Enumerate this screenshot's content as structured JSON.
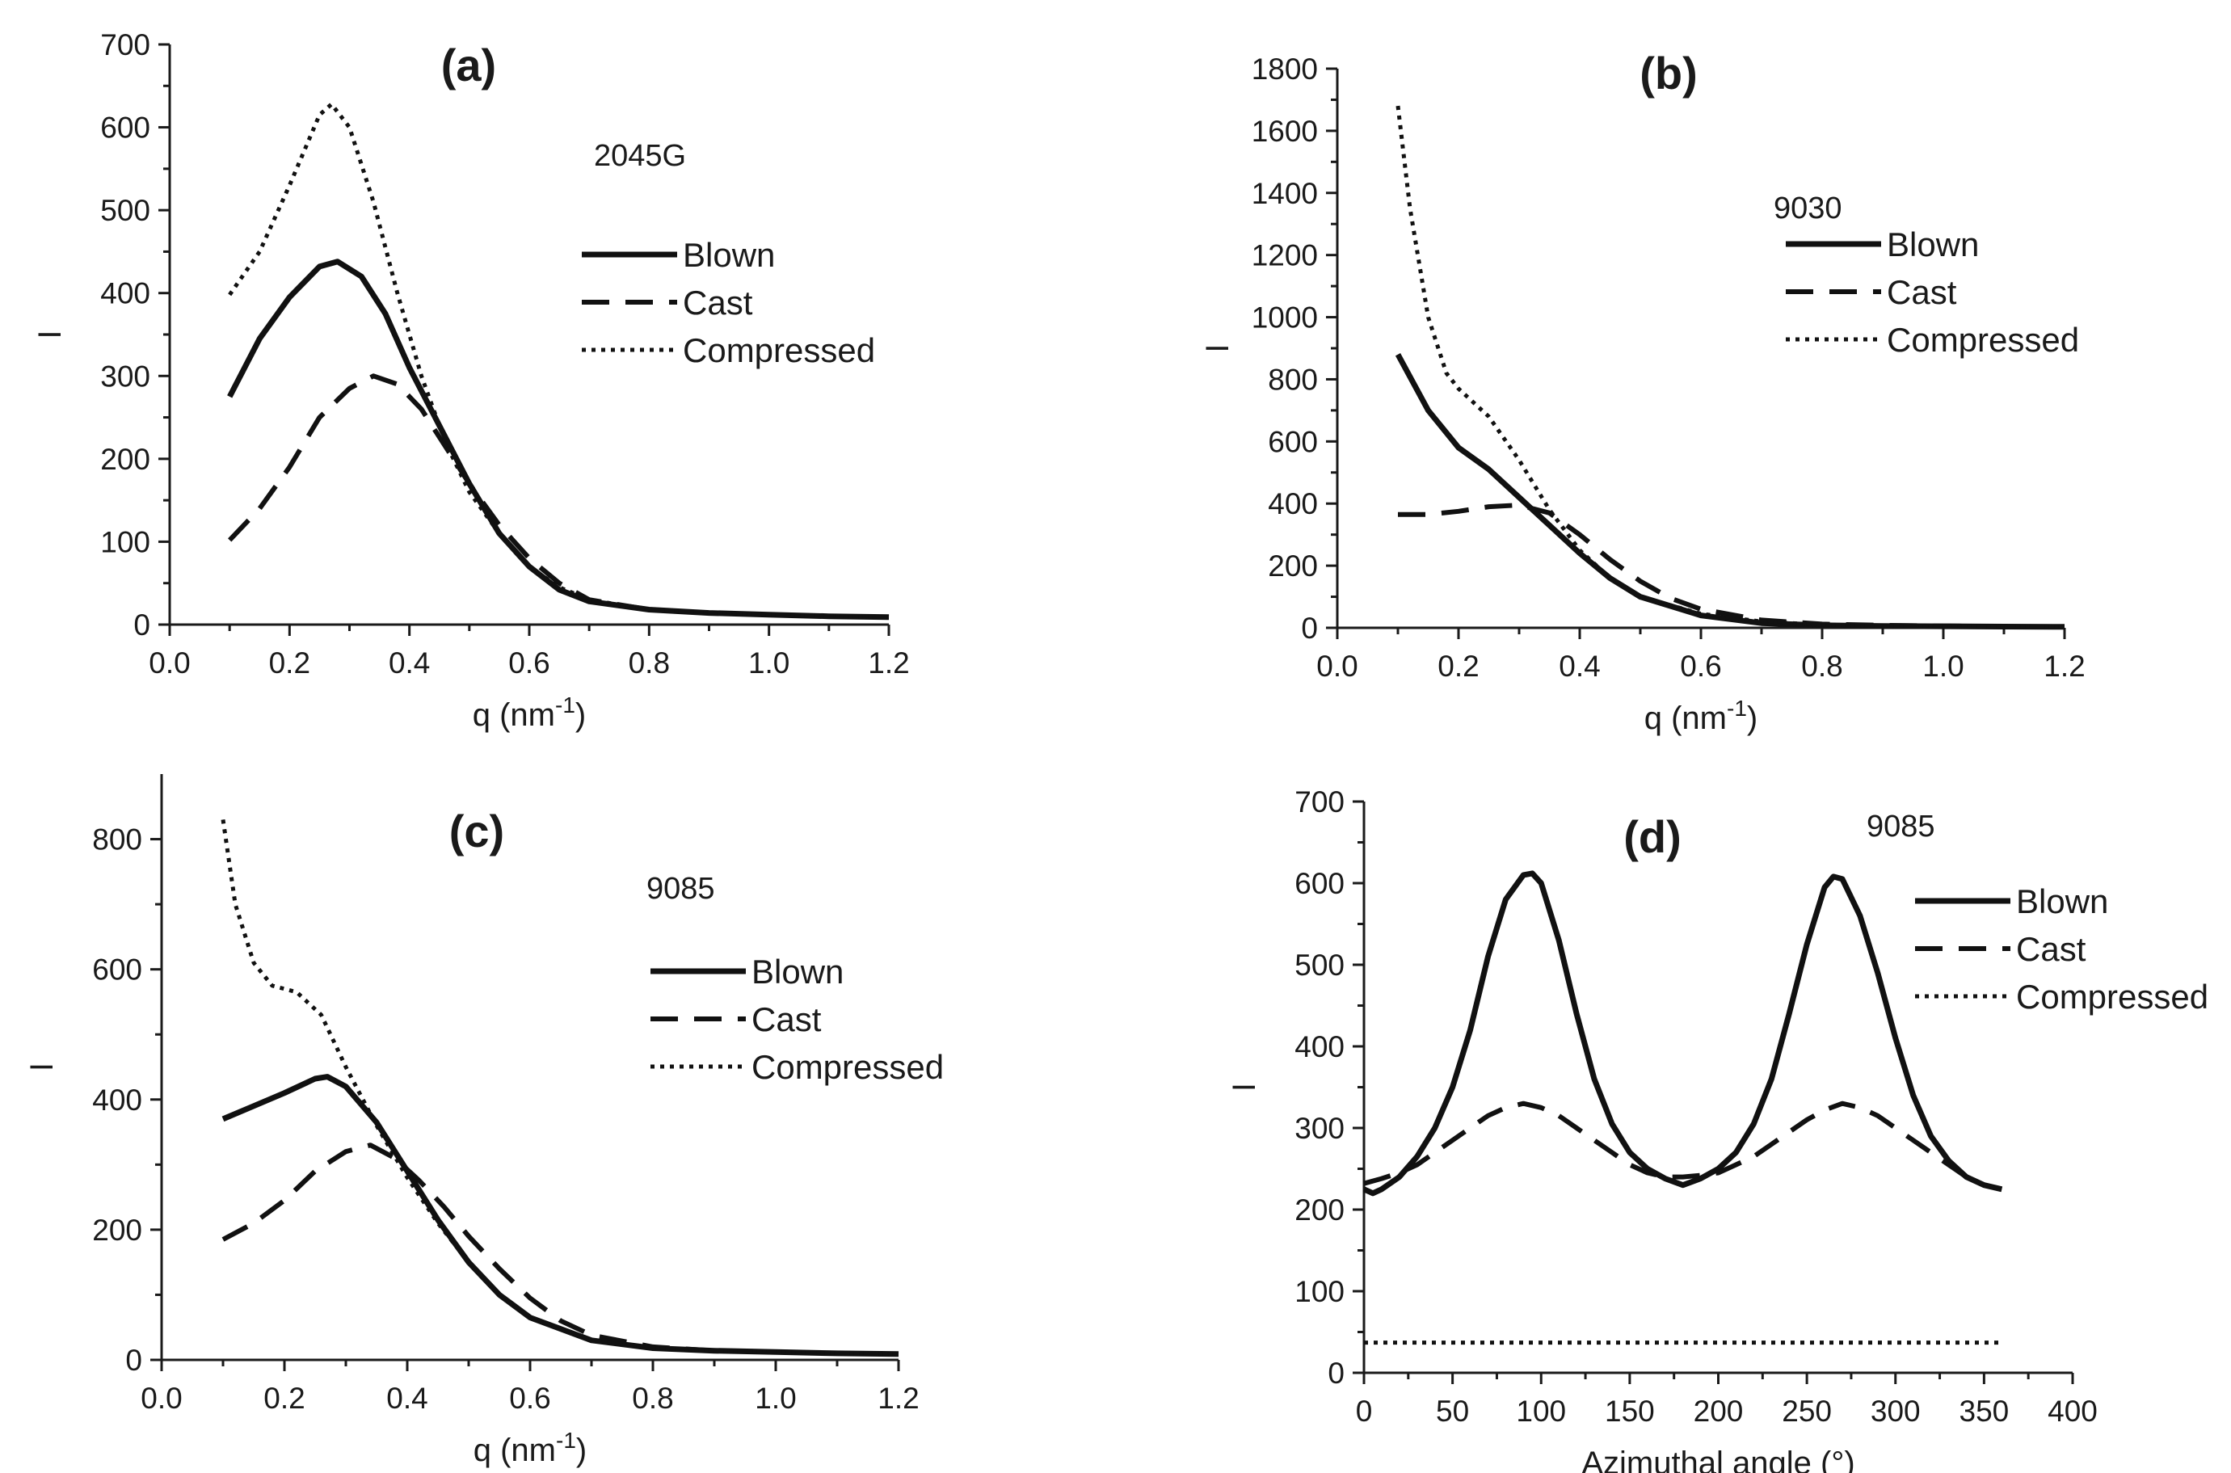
{
  "chart_data": [
    {
      "type": "line",
      "panel": "(a)",
      "annotation": "2045G",
      "xlabel": "q (nm",
      "xlabel_sup": "-1",
      "xlabel_suffix": ")",
      "ylabel": "I",
      "xlim": [
        0.0,
        1.2
      ],
      "ylim": [
        0,
        700
      ],
      "xticks": [
        "0.0",
        "0.2",
        "0.4",
        "0.6",
        "0.8",
        "1.0",
        "1.2"
      ],
      "yticks": [
        "0",
        "100",
        "200",
        "300",
        "400",
        "500",
        "600",
        "700"
      ],
      "legend": [
        "Blown",
        "Cast",
        "Compressed"
      ],
      "series": [
        {
          "name": "Blown",
          "style": "solid",
          "x": [
            0.1,
            0.15,
            0.2,
            0.25,
            0.28,
            0.32,
            0.36,
            0.4,
            0.45,
            0.5,
            0.55,
            0.6,
            0.65,
            0.7,
            0.8,
            0.9,
            1.0,
            1.1,
            1.2
          ],
          "y": [
            275,
            345,
            395,
            432,
            438,
            420,
            375,
            310,
            240,
            170,
            110,
            70,
            42,
            28,
            18,
            14,
            12,
            10,
            9
          ]
        },
        {
          "name": "Cast",
          "style": "dashed",
          "x": [
            0.1,
            0.15,
            0.2,
            0.25,
            0.3,
            0.34,
            0.38,
            0.42,
            0.46,
            0.5,
            0.55,
            0.6,
            0.65,
            0.7,
            0.8,
            0.9,
            1.0,
            1.1,
            1.2
          ],
          "y": [
            102,
            140,
            190,
            250,
            285,
            300,
            290,
            260,
            215,
            170,
            120,
            80,
            50,
            30,
            18,
            14,
            12,
            10,
            9
          ]
        },
        {
          "name": "Compressed",
          "style": "dotted",
          "x": [
            0.1,
            0.15,
            0.2,
            0.25,
            0.27,
            0.3,
            0.34,
            0.38,
            0.42,
            0.46,
            0.5,
            0.55,
            0.6,
            0.65,
            0.7,
            0.8,
            0.9,
            1.0,
            1.1,
            1.2
          ],
          "y": [
            398,
            450,
            530,
            615,
            628,
            600,
            510,
            400,
            300,
            220,
            160,
            110,
            70,
            45,
            30,
            18,
            14,
            12,
            10,
            9
          ]
        }
      ]
    },
    {
      "type": "line",
      "panel": "(b)",
      "annotation": "9030",
      "xlabel": "q (nm",
      "xlabel_sup": "-1",
      "xlabel_suffix": ")",
      "ylabel": "I",
      "xlim": [
        0.0,
        1.2
      ],
      "ylim": [
        0,
        1800
      ],
      "xticks": [
        "0.0",
        "0.2",
        "0.4",
        "0.6",
        "0.8",
        "1.0",
        "1.2"
      ],
      "yticks": [
        "0",
        "200",
        "400",
        "600",
        "800",
        "1000",
        "1200",
        "1400",
        "1600",
        "1800"
      ],
      "legend": [
        "Blown",
        "Cast",
        "Compressed"
      ],
      "series": [
        {
          "name": "Blown",
          "style": "solid",
          "x": [
            0.1,
            0.15,
            0.2,
            0.25,
            0.3,
            0.35,
            0.4,
            0.45,
            0.5,
            0.6,
            0.7,
            0.8,
            0.9,
            1.0,
            1.1,
            1.2
          ],
          "y": [
            880,
            700,
            580,
            510,
            420,
            330,
            240,
            160,
            100,
            40,
            15,
            8,
            6,
            5,
            4,
            3
          ]
        },
        {
          "name": "Cast",
          "style": "dashed",
          "x": [
            0.1,
            0.15,
            0.2,
            0.25,
            0.3,
            0.35,
            0.4,
            0.45,
            0.5,
            0.55,
            0.6,
            0.7,
            0.8,
            0.9,
            1.0,
            1.1,
            1.2
          ],
          "y": [
            365,
            365,
            375,
            390,
            395,
            370,
            300,
            220,
            150,
            95,
            60,
            25,
            12,
            8,
            6,
            4,
            3
          ]
        },
        {
          "name": "Compressed",
          "style": "dotted",
          "x": [
            0.1,
            0.12,
            0.15,
            0.18,
            0.2,
            0.25,
            0.3,
            0.35,
            0.4,
            0.45,
            0.5,
            0.6,
            0.7,
            0.8,
            0.9,
            1.0,
            1.1,
            1.2
          ],
          "y": [
            1680,
            1350,
            1000,
            820,
            770,
            680,
            540,
            380,
            250,
            160,
            100,
            45,
            20,
            10,
            6,
            5,
            4,
            3
          ]
        }
      ]
    },
    {
      "type": "line",
      "panel": "(c)",
      "annotation": "9085",
      "xlabel": "q (nm",
      "xlabel_sup": "-1",
      "xlabel_suffix": ")",
      "ylabel": "I",
      "xlim": [
        0.0,
        1.2
      ],
      "ylim": [
        0,
        900
      ],
      "xticks": [
        "0.0",
        "0.2",
        "0.4",
        "0.6",
        "0.8",
        "1.0",
        "1.2"
      ],
      "yticks": [
        "0",
        "200",
        "400",
        "600",
        "800"
      ],
      "legend": [
        "Blown",
        "Cast",
        "Compressed"
      ],
      "series": [
        {
          "name": "Blown",
          "style": "solid",
          "x": [
            0.1,
            0.15,
            0.2,
            0.25,
            0.27,
            0.3,
            0.35,
            0.4,
            0.45,
            0.5,
            0.55,
            0.6,
            0.7,
            0.8,
            0.9,
            1.0,
            1.1,
            1.2
          ],
          "y": [
            370,
            390,
            410,
            432,
            435,
            420,
            365,
            290,
            215,
            150,
            100,
            65,
            30,
            18,
            14,
            12,
            10,
            9
          ]
        },
        {
          "name": "Cast",
          "style": "dashed",
          "x": [
            0.1,
            0.15,
            0.2,
            0.25,
            0.3,
            0.34,
            0.38,
            0.42,
            0.46,
            0.5,
            0.55,
            0.6,
            0.65,
            0.7,
            0.8,
            0.9,
            1.0,
            1.1,
            1.2
          ],
          "y": [
            185,
            210,
            245,
            290,
            320,
            330,
            310,
            275,
            235,
            190,
            140,
            95,
            60,
            38,
            20,
            14,
            12,
            10,
            9
          ]
        },
        {
          "name": "Compressed",
          "style": "dotted",
          "x": [
            0.1,
            0.12,
            0.15,
            0.18,
            0.22,
            0.26,
            0.3,
            0.35,
            0.4,
            0.45,
            0.5,
            0.55,
            0.6,
            0.7,
            0.8,
            0.9,
            1.0,
            1.1,
            1.2
          ],
          "y": [
            830,
            700,
            610,
            575,
            565,
            530,
            450,
            360,
            280,
            210,
            150,
            100,
            65,
            30,
            18,
            14,
            12,
            10,
            9
          ]
        }
      ]
    },
    {
      "type": "line",
      "panel": "(d)",
      "annotation": "9085",
      "xlabel": "Azimuthal angle (°)",
      "xlabel_sup": "",
      "xlabel_suffix": "",
      "ylabel": "I",
      "xlim": [
        0,
        400
      ],
      "ylim": [
        0,
        700
      ],
      "xticks": [
        "0",
        "50",
        "100",
        "150",
        "200",
        "250",
        "300",
        "350",
        "400"
      ],
      "yticks": [
        "0",
        "100",
        "200",
        "300",
        "400",
        "500",
        "600",
        "700"
      ],
      "legend": [
        "Blown",
        "Cast",
        "Compressed"
      ],
      "series": [
        {
          "name": "Blown",
          "style": "solid",
          "x": [
            0,
            5,
            10,
            20,
            30,
            40,
            50,
            60,
            70,
            80,
            90,
            95,
            100,
            110,
            120,
            130,
            140,
            150,
            160,
            170,
            180,
            190,
            200,
            210,
            220,
            230,
            240,
            250,
            260,
            265,
            270,
            280,
            290,
            300,
            310,
            320,
            330,
            340,
            350,
            360
          ],
          "y": [
            225,
            220,
            225,
            240,
            265,
            300,
            350,
            420,
            510,
            580,
            610,
            612,
            600,
            530,
            440,
            360,
            305,
            270,
            250,
            238,
            230,
            238,
            250,
            270,
            305,
            360,
            440,
            525,
            595,
            608,
            605,
            560,
            490,
            410,
            340,
            290,
            260,
            240,
            230,
            225
          ]
        },
        {
          "name": "Cast",
          "style": "dashed",
          "x": [
            0,
            10,
            20,
            30,
            40,
            50,
            60,
            70,
            80,
            90,
            100,
            110,
            120,
            130,
            140,
            150,
            160,
            170,
            180,
            190,
            200,
            210,
            220,
            230,
            240,
            250,
            260,
            270,
            280,
            290,
            300,
            310,
            320,
            330,
            340,
            350,
            360
          ],
          "y": [
            232,
            238,
            245,
            255,
            270,
            285,
            300,
            315,
            325,
            330,
            325,
            315,
            300,
            285,
            270,
            255,
            245,
            240,
            240,
            242,
            245,
            255,
            265,
            280,
            295,
            310,
            322,
            330,
            325,
            315,
            300,
            285,
            270,
            255,
            240,
            230,
            225
          ]
        },
        {
          "name": "Compressed",
          "style": "dotted",
          "x": [
            0,
            360
          ],
          "y": [
            37,
            37
          ]
        }
      ]
    }
  ]
}
